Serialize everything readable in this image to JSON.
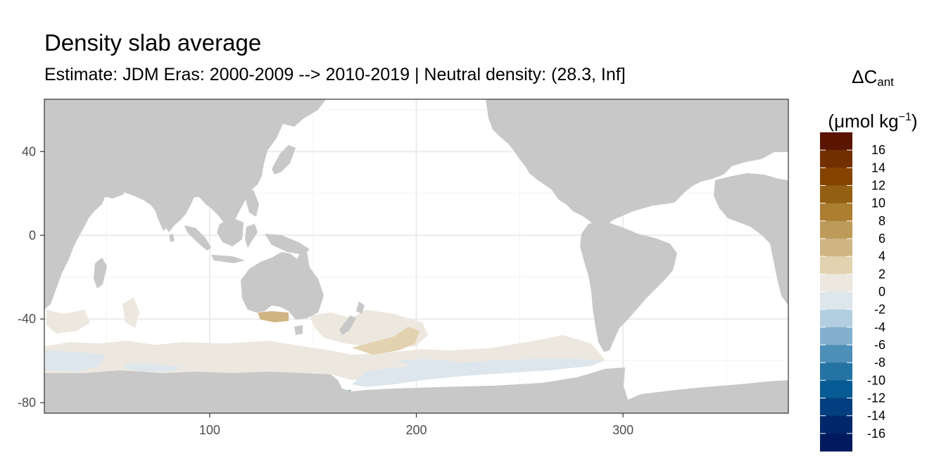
{
  "title": "Density slab average",
  "subtitle": "Estimate: JDM Eras: 2000-2009 --> 2010-2019 | Neutral density: (28.3, Inf]",
  "legend": {
    "title_main": "ΔC",
    "title_sub": "ant",
    "unit_open": "(μmol kg",
    "unit_sup": "−1",
    "unit_close": ")",
    "labels": [
      "16",
      "14",
      "12",
      "10",
      "8",
      "6",
      "4",
      "2",
      "0",
      "-2",
      "-4",
      "-6",
      "-8",
      "-10",
      "-12",
      "-14",
      "-16"
    ],
    "colors": [
      "#5a1500",
      "#723000",
      "#844400",
      "#935f12",
      "#ab7e30",
      "#bc9a5a",
      "#cfb583",
      "#e2d2b0",
      "#ede8df",
      "#dce6ec",
      "#b3cee0",
      "#83b0cf",
      "#4e8fb8",
      "#2473a3",
      "#075b94",
      "#033f80",
      "#02276b",
      "#011a5e"
    ]
  },
  "chart_data": {
    "type": "heatmap",
    "title": "Density slab average",
    "subtitle": "Estimate: JDM Eras: 2000-2009 --> 2010-2019 | Neutral density: (28.3, Inf]",
    "xlabel": "",
    "ylabel": "",
    "xlim": [
      20,
      380
    ],
    "ylim": [
      -85,
      65
    ],
    "x_ticks": [
      100,
      200,
      300
    ],
    "y_ticks": [
      40,
      0,
      -40,
      -80
    ],
    "grid": true,
    "legend_placement": "right",
    "colorbar_range": [
      -18,
      18
    ],
    "colorbar_step": 2,
    "regions": [
      {
        "label": "Indian Ocean sector, 60-70S",
        "value": 1
      },
      {
        "label": "Indian Ocean near Antarctica, 65-70S",
        "value": -1
      },
      {
        "label": "South of Australia, ~45S",
        "value": 5
      },
      {
        "label": "Southwest Pacific, 45-55S",
        "value": 3
      },
      {
        "label": "Pacific sector, 55-65S",
        "value": 1
      },
      {
        "label": "Ross Sea, 65-72S",
        "value": -1
      },
      {
        "label": "Antarctic coast near 165E",
        "value": -9
      }
    ]
  }
}
